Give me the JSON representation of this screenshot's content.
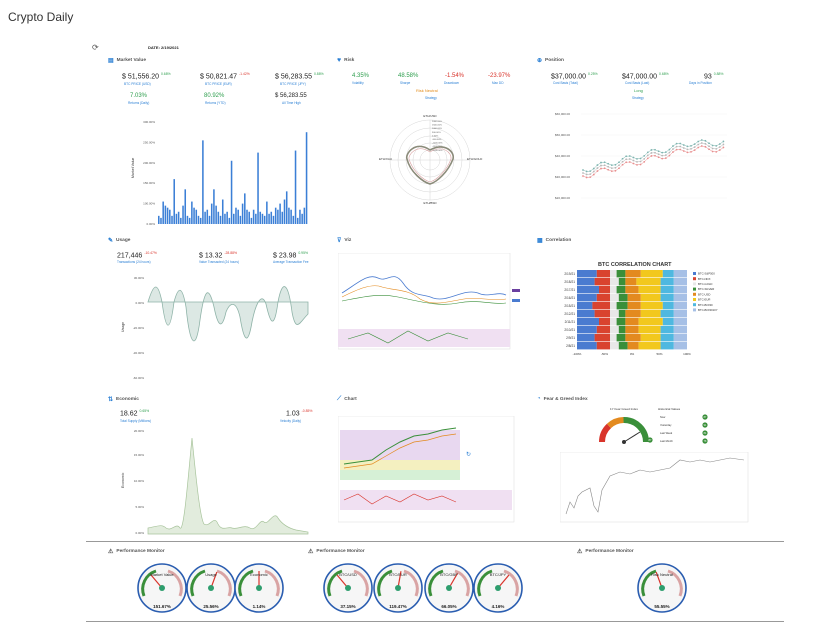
{
  "app_title": "Crypto Daily",
  "date_label": "DATE: 2/19/2021",
  "sections": {
    "market_value": "Market Value",
    "risk": "Risk",
    "position": "Position",
    "usage": "Usage",
    "viz": "Viz",
    "correlation": "Correlation",
    "economic": "Economic",
    "chart": "Chart",
    "fear_greed": "Fear & Greed Index",
    "perf1": "Performance Monitor",
    "perf2": "Performance Monitor",
    "perf3": "Performance Monitor"
  },
  "market_value": {
    "v1": "$ 51,556.20",
    "v1_pct": "0.68%",
    "v1_sub": "BTC PRICE (USD)",
    "v2": "$ 50,821.47",
    "v2_pct": "-1.42%",
    "v2_sub": "BTC PRICE (EUR)",
    "v3": "$ 56,283.55",
    "v3_pct": "0.88%",
    "v3_sub": "BTC PRICE (JPY)",
    "v4": "7.03%",
    "v4_sub": "Returns (Daily)",
    "v5": "80.92%",
    "v5_sub": "Returns (YTD)",
    "v6": "$ 56,283.55",
    "v6_sub": "All Time High"
  },
  "risk": {
    "v1": "4.35%",
    "v1_sub": "Volatility",
    "v2": "48.58%",
    "v2_sub": "Sharpe",
    "v3": "-1.54%",
    "v3_sub": "Drawdown",
    "v4": "-23.97%",
    "v4_sub": "Max DD",
    "mode": "Risk Neutral",
    "mode_sub": "Strategy"
  },
  "position": {
    "v1": "$37,000.00",
    "v1_pct": "0.25%",
    "v1_sub": "Cost Basis (Total)",
    "v2": "$47,000.00",
    "v2_pct": "0.68%",
    "v2_sub": "Cost Basis (Last)",
    "v3": "93",
    "v3_pct": "0.88%",
    "v3_sub": "Days in Position",
    "mode": "Long",
    "mode_sub": "Strategy"
  },
  "usage": {
    "v1": "217,446",
    "v1_pct": "-10.47%",
    "v1_sub": "Transactions (24 hours)",
    "v2": "$ 13.32",
    "v2_pct": "-28.88%",
    "v2_sub": "Value Transacted (24 hours)",
    "v3": "$ 23.98",
    "v3_pct": "0.95%",
    "v3_sub": "Average Transaction Fee"
  },
  "economic": {
    "v1": "18.62",
    "v1_pct": "0.65%",
    "v1_sub": "Total Supply (Millions)",
    "v2": "1.03",
    "v2_pct": "-0.85%",
    "v2_sub": "Velocity (Daily)"
  },
  "bar_chart": {
    "ylabel": "Market Value",
    "ticks": [
      "300.00%",
      "250.00%",
      "200.00%",
      "150.00%",
      "100.00%",
      "0.00%"
    ],
    "values": [
      8,
      6,
      22,
      18,
      16,
      14,
      8,
      44,
      10,
      12,
      6,
      18,
      34,
      8,
      6,
      22,
      16,
      14,
      8,
      6,
      82,
      12,
      14,
      8,
      20,
      34,
      18,
      12,
      8,
      24,
      10,
      12,
      6,
      62,
      10,
      16,
      14,
      8,
      20,
      30,
      14,
      12,
      6,
      14,
      10,
      70,
      12,
      10,
      8,
      22,
      10,
      12,
      8,
      16,
      14,
      20,
      12,
      24,
      32,
      16,
      14,
      8,
      72,
      6,
      14,
      10,
      16,
      90
    ]
  },
  "usage_chart": {
    "ylabel": "Usage",
    "ticks": [
      "30.00%",
      "0.00%",
      "-20.00%",
      "-30.00%",
      "-40.00%",
      "-60.00%"
    ]
  },
  "economic_chart": {
    "ylabel": "Economic",
    "ticks": [
      "20.00%",
      "15.00%",
      "10.00%",
      "5.00%",
      "0.00%"
    ]
  },
  "radar": {
    "axis_top": "ETH/USD",
    "axis_bottom": "ETH/BSD",
    "axis_left": "ETH/XAU",
    "axis_right": "ETH/GOLD",
    "rings": [
      "2000.00%",
      "1500.00%",
      "1000.00%",
      "500.00%",
      "0.00%",
      "-500.00%",
      "-1000.00%",
      "-1500.00%",
      "-2000.00%"
    ]
  },
  "position_chart": {
    "ticks": [
      "$60,000.00",
      "$50,000.00",
      "$40,000.00",
      "$30,000.00",
      "$20,000.00"
    ]
  },
  "correlation": {
    "title": "BTC CORRELATION CHART",
    "rows": [
      "2/19/21",
      "2/18/21",
      "2/17/21",
      "2/16/21",
      "2/15/21",
      "2/12/21",
      "2/11/21",
      "2/10/21",
      "2/9/21",
      "2/8/21"
    ],
    "xticks": [
      "-100%",
      "-50%",
      "0%",
      "50%",
      "100%"
    ],
    "legend": [
      "BTC-S&P500",
      "BTC-NDX",
      "BTC-GOLD",
      "BTC-SILVER",
      "BTC-USD",
      "BTC-EUR",
      "BTC-BOND",
      "BTC-BOND10Y"
    ],
    "colors": [
      "#4a7bd0",
      "#d9432f",
      "#e8e8e8",
      "#3a8f3a",
      "#e38a1f",
      "#f2c81d",
      "#4fb8e0",
      "#a6c0e6"
    ]
  },
  "fear_greed": {
    "value": "87",
    "label": "1Y Fear Greed Index",
    "history_title": "Historical Values",
    "history": [
      "Now",
      "Yesterday",
      "Last Week",
      "Last Month"
    ],
    "history_values": [
      "87",
      "91",
      "84",
      "78"
    ]
  },
  "perf_gauges": [
    {
      "label": "Market Value",
      "value": "151.67%"
    },
    {
      "label": "Usage",
      "value": "25.56%"
    },
    {
      "label": "Economic",
      "value": "1.14%"
    },
    {
      "label": "BTC/USD",
      "value": "37.15%"
    },
    {
      "label": "BTC/EUR",
      "value": "119.47%"
    },
    {
      "label": "BTC/GBP",
      "value": "66.05%"
    },
    {
      "label": "BTC/JPY",
      "value": "4.16%"
    },
    {
      "label": "Risk Neutral",
      "value": "55.55%"
    }
  ]
}
